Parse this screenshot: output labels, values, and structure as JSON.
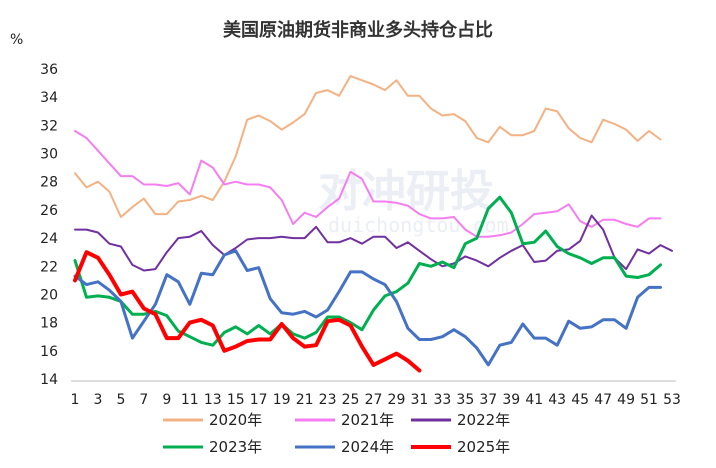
{
  "chart_data": {
    "type": "line",
    "title": "美国原油期货非商业多头持仓占比",
    "ylabel": "%",
    "xlabel": "",
    "ylim": [
      14,
      36
    ],
    "yticks": [
      14,
      16,
      18,
      20,
      22,
      24,
      26,
      28,
      30,
      32,
      34,
      36
    ],
    "xlim": [
      1,
      53
    ],
    "xticks": [
      1,
      3,
      5,
      7,
      9,
      11,
      13,
      15,
      17,
      19,
      21,
      23,
      25,
      27,
      29,
      31,
      33,
      35,
      37,
      39,
      41,
      43,
      45,
      47,
      49,
      51,
      53
    ],
    "grid": false,
    "legend": "bottom",
    "watermark": "对冲研投",
    "watermark_sub": "duichongtou.com",
    "series": [
      {
        "name": "2020年",
        "color": "#f4b183",
        "width": 2,
        "values": [
          28.6,
          27.6,
          28,
          27.3,
          25.5,
          26.2,
          26.8,
          25.7,
          25.7,
          26.6,
          26.7,
          27,
          26.7,
          28,
          29.8,
          32.4,
          32.7,
          32.3,
          31.7,
          32.2,
          32.8,
          34.3,
          34.5,
          34.1,
          35.5,
          35.2,
          34.9,
          34.5,
          35.2,
          34.1,
          34.1,
          33.2,
          32.7,
          32.8,
          32.3,
          31.1,
          30.8,
          31.9,
          31.3,
          31.3,
          31.6,
          33.2,
          33,
          31.8,
          31.1,
          30.8,
          32.4,
          32.1,
          31.7,
          30.9,
          31.6,
          31
        ]
      },
      {
        "name": "2021年",
        "color": "#f47ef0",
        "width": 2,
        "values": [
          31.6,
          31.1,
          30.2,
          29.3,
          28.4,
          28.4,
          27.8,
          27.8,
          27.7,
          27.9,
          27.1,
          29.5,
          29,
          27.8,
          28,
          27.8,
          27.8,
          27.6,
          26.7,
          25,
          25.8,
          25.5,
          26.2,
          26.8,
          28.7,
          28.2,
          26.6,
          26.6,
          26.5,
          26.3,
          25.7,
          25.4,
          25.4,
          25.5,
          24.6,
          24.1,
          24.1,
          24.2,
          24.4,
          25,
          25.7,
          25.8,
          25.9,
          26.4,
          25.2,
          24.8,
          25.3,
          25.3,
          25,
          24.8,
          25.4,
          25.4
        ]
      },
      {
        "name": "2022年",
        "color": "#7030a0",
        "width": 2,
        "values": [
          24.6,
          24.6,
          24.4,
          23.6,
          23.4,
          22.1,
          21.7,
          21.8,
          23,
          24,
          24.1,
          24.5,
          23.5,
          22.8,
          23.3,
          23.9,
          24,
          24,
          24.1,
          24,
          24,
          24.8,
          23.7,
          23.7,
          24,
          23.6,
          24.1,
          24.1,
          23.3,
          23.7,
          23.1,
          22.5,
          22,
          22.2,
          22.7,
          22.4,
          22,
          22.6,
          23.1,
          23.5,
          22.3,
          22.4,
          23.1,
          23.2,
          23.8,
          25.6,
          24.6,
          22.6,
          21.8,
          23.2,
          22.9,
          23.5,
          23.1
        ]
      },
      {
        "name": "2023年",
        "color": "#00b050",
        "width": 3,
        "values": [
          22.4,
          19.8,
          19.9,
          19.8,
          19.5,
          18.6,
          18.6,
          18.8,
          18.5,
          17.4,
          17,
          16.6,
          16.4,
          17.3,
          17.7,
          17.2,
          17.8,
          17.2,
          17.9,
          17.2,
          16.9,
          17.3,
          18.4,
          18.4,
          18,
          17.5,
          18.9,
          19.9,
          20.2,
          20.8,
          22.2,
          22,
          22.3,
          21.9,
          23.6,
          24,
          26.1,
          26.9,
          25.8,
          23.6,
          23.7,
          24.5,
          23.4,
          22.9,
          22.6,
          22.2,
          22.6,
          22.6,
          21.3,
          21.2,
          21.4,
          22.1
        ]
      },
      {
        "name": "2024年",
        "color": "#4472c4",
        "width": 3,
        "values": [
          21.3,
          20.7,
          20.9,
          20.3,
          19.5,
          16.9,
          18.1,
          19.3,
          21.4,
          20.9,
          19.3,
          21.5,
          21.4,
          22.8,
          23.1,
          21.7,
          21.9,
          19.7,
          18.7,
          18.6,
          18.8,
          18.4,
          18.9,
          20.2,
          21.6,
          21.6,
          21.1,
          20.7,
          19.5,
          17.6,
          16.8,
          16.8,
          17,
          17.5,
          17,
          16.2,
          15,
          16.4,
          16.6,
          17.9,
          16.9,
          16.9,
          16.4,
          18.1,
          17.6,
          17.7,
          18.2,
          18.2,
          17.6,
          19.8,
          20.5,
          20.5
        ]
      },
      {
        "name": "2025年",
        "color": "#ff0000",
        "width": 4,
        "values": [
          21,
          23,
          22.6,
          21.4,
          20,
          20.2,
          19,
          18.6,
          16.9,
          16.9,
          18,
          18.2,
          17.8,
          16,
          16.3,
          16.7,
          16.8,
          16.8,
          17.9,
          16.9,
          16.3,
          16.4,
          18.1,
          18.2,
          17.8,
          16.3,
          15,
          15.4,
          15.8,
          15.3,
          14.6
        ]
      }
    ]
  }
}
